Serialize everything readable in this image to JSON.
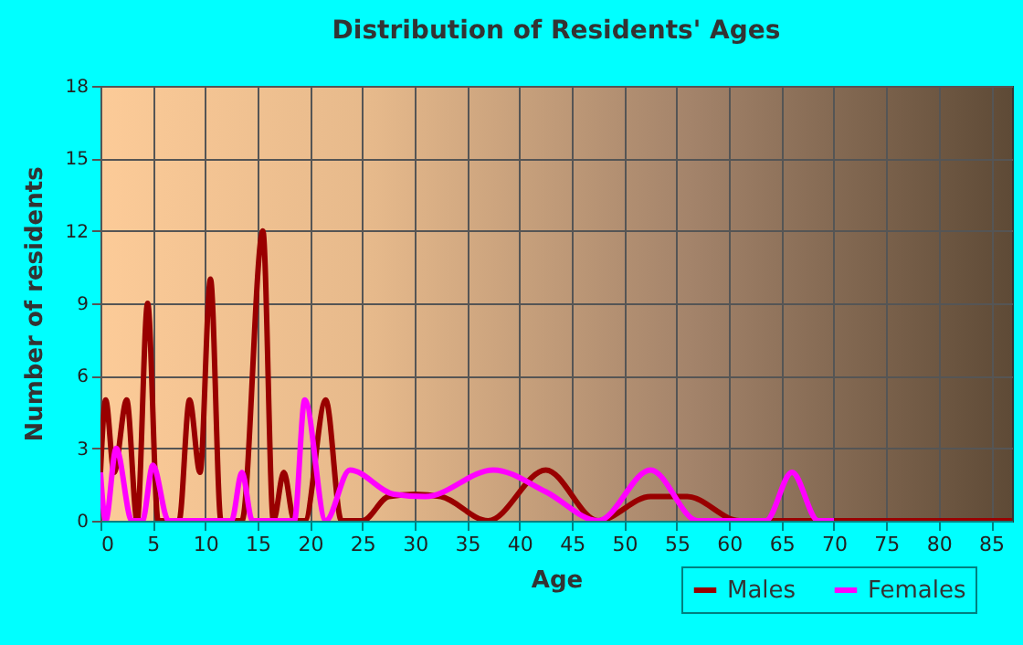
{
  "chart_data": {
    "type": "line",
    "title": "Distribution of Residents' Ages",
    "xlabel": "Age",
    "ylabel": "Number of residents",
    "xlim": [
      0,
      87
    ],
    "xticks": [
      0,
      5,
      10,
      15,
      20,
      25,
      30,
      35,
      40,
      45,
      50,
      55,
      60,
      65,
      70,
      75,
      80,
      85
    ],
    "ylim": [
      0,
      18
    ],
    "yticks": [
      0,
      3,
      6,
      9,
      12,
      15,
      18
    ],
    "grid": true,
    "legend": "bottom right",
    "marker": "none",
    "line_style": "solid",
    "series": [
      {
        "name": "Males",
        "color": "#990000",
        "x": [
          0,
          0.5,
          1.3,
          2.5,
          3.5,
          4.5,
          5.5,
          7.5,
          8.5,
          9.5,
          10.5,
          11.5,
          13.5,
          15.5,
          16.5,
          17.5,
          18.5,
          19.5,
          21.5,
          23,
          25,
          27.5,
          30,
          32.5,
          37,
          42.5,
          47.5,
          52.5,
          56,
          61,
          87
        ],
        "values": [
          2,
          5,
          2,
          5,
          0,
          9,
          0,
          0,
          5,
          2,
          10,
          0,
          0,
          12,
          0,
          2,
          0,
          0,
          5,
          0,
          0,
          1,
          1.1,
          1,
          0,
          2.1,
          0,
          1,
          1,
          0,
          0
        ]
      },
      {
        "name": "Females",
        "color": "#ff00ff",
        "x": [
          0,
          0.5,
          1.5,
          3,
          4,
          5,
          6.5,
          12.5,
          13.5,
          14.5,
          18.5,
          19.5,
          21.5,
          23.8,
          28,
          31,
          37.5,
          42.5,
          47.5,
          52.5,
          57,
          63.5,
          66,
          68.5,
          70
        ],
        "values": [
          2,
          0,
          3,
          0,
          0,
          2.3,
          0,
          0,
          2,
          0,
          0,
          5,
          0,
          2.1,
          1.1,
          1,
          2.1,
          1.2,
          0,
          2.1,
          0,
          0,
          2,
          0,
          0
        ]
      }
    ]
  }
}
